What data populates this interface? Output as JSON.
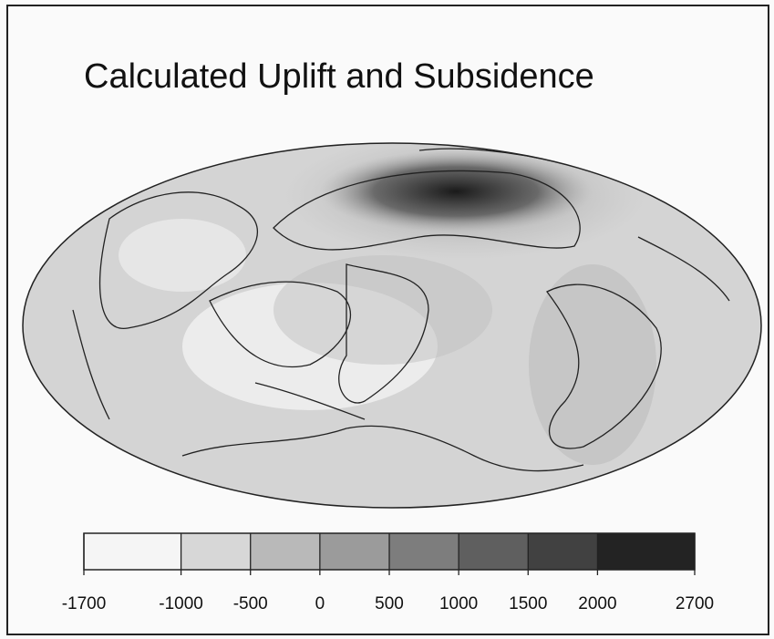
{
  "title": "Calculated Uplift and Subsidence",
  "colorbar": {
    "lim": [
      -1700,
      2700
    ],
    "ticks": [
      -1700,
      -1000,
      -500,
      0,
      500,
      1000,
      1500,
      2000,
      2700
    ]
  }
}
